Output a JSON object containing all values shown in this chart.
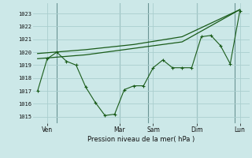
{
  "background_color": "#cce8e8",
  "grid_color": "#aacece",
  "line_color": "#1a5c1a",
  "title": "Pression niveau de la mer( hPa )",
  "ylim": [
    1014.5,
    1023.8
  ],
  "yticks": [
    1015,
    1016,
    1017,
    1018,
    1019,
    1020,
    1021,
    1022,
    1023
  ],
  "xlabel_days": [
    "Ven",
    "Mar",
    "Sam",
    "Dim",
    "Lun"
  ],
  "vline_positions": [
    2.0,
    8.5,
    11.5,
    16.5,
    20.5
  ],
  "line1_x": [
    0,
    1,
    2,
    3,
    4,
    5,
    6,
    7,
    8,
    9,
    10,
    11,
    12,
    13,
    14,
    15,
    16,
    17,
    18,
    19,
    20,
    21
  ],
  "line1_y": [
    1017.0,
    1019.5,
    1020.0,
    1019.3,
    1019.0,
    1017.3,
    1016.1,
    1015.1,
    1015.2,
    1017.1,
    1017.4,
    1017.4,
    1018.8,
    1019.4,
    1018.8,
    1018.8,
    1018.8,
    1021.2,
    1021.3,
    1020.5,
    1019.1,
    1023.2
  ],
  "line2_x": [
    0,
    5,
    10,
    15,
    21
  ],
  "line2_y": [
    1019.5,
    1019.8,
    1020.3,
    1020.8,
    1023.3
  ],
  "line3_x": [
    0,
    5,
    10,
    15,
    21
  ],
  "line3_y": [
    1019.9,
    1020.2,
    1020.6,
    1021.2,
    1023.3
  ],
  "xlabel_x_positions": [
    1.0,
    8.5,
    12.0,
    16.5,
    21.0
  ],
  "n_x": 22,
  "xlim": [
    -0.5,
    22.0
  ]
}
